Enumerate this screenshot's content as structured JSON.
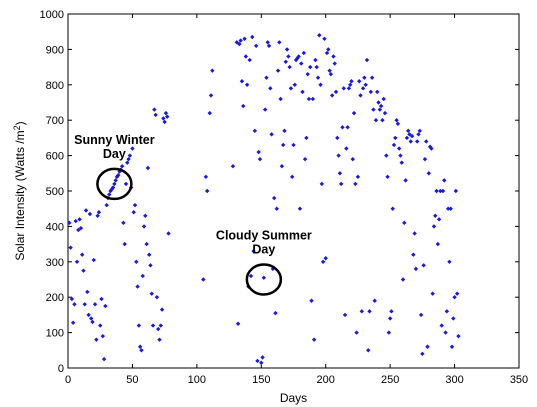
{
  "chart_data": {
    "type": "scatter",
    "xlabel": "Days",
    "ylabel_main": "Solar Intensity (Watts /m",
    "ylabel_sup": "2",
    "ylabel_close": ")",
    "xlim": [
      0,
      350
    ],
    "ylim": [
      0,
      1000
    ],
    "xticks": [
      0,
      50,
      100,
      150,
      200,
      250,
      300,
      350
    ],
    "yticks": [
      0,
      100,
      200,
      300,
      400,
      500,
      600,
      700,
      800,
      900,
      1000
    ],
    "grid": false,
    "marker_color": "#1a1adc",
    "annotation_color": "#000000",
    "annotations": [
      {
        "line1": "Sunny Winter",
        "line2": "Day",
        "x": 36,
        "y": 520
      },
      {
        "line1": "Cloudy Summer",
        "line2": "Day",
        "x": 152,
        "y": 250
      }
    ],
    "points": [
      [
        1,
        410
      ],
      [
        2,
        340
      ],
      [
        3,
        195
      ],
      [
        4,
        128
      ],
      [
        5,
        180
      ],
      [
        6,
        415
      ],
      [
        7,
        300
      ],
      [
        8,
        390
      ],
      [
        9,
        420
      ],
      [
        10,
        395
      ],
      [
        11,
        320
      ],
      [
        12,
        275
      ],
      [
        13,
        180
      ],
      [
        14,
        445
      ],
      [
        15,
        215
      ],
      [
        16,
        150
      ],
      [
        17,
        435
      ],
      [
        18,
        140
      ],
      [
        19,
        130
      ],
      [
        20,
        305
      ],
      [
        21,
        180
      ],
      [
        22,
        80
      ],
      [
        23,
        430
      ],
      [
        24,
        440
      ],
      [
        25,
        120
      ],
      [
        26,
        195
      ],
      [
        27,
        90
      ],
      [
        28,
        25
      ],
      [
        29,
        175
      ],
      [
        30,
        460
      ],
      [
        31,
        480
      ],
      [
        32,
        490
      ],
      [
        33,
        500
      ],
      [
        34,
        505
      ],
      [
        35,
        510
      ],
      [
        36,
        520
      ],
      [
        37,
        530
      ],
      [
        38,
        540
      ],
      [
        39,
        545
      ],
      [
        40,
        555
      ],
      [
        41,
        560
      ],
      [
        42,
        570
      ],
      [
        43,
        410
      ],
      [
        44,
        350
      ],
      [
        45,
        520
      ],
      [
        46,
        580
      ],
      [
        47,
        590
      ],
      [
        48,
        600
      ],
      [
        49,
        510
      ],
      [
        50,
        620
      ],
      [
        51,
        440
      ],
      [
        52,
        460
      ],
      [
        53,
        300
      ],
      [
        54,
        230
      ],
      [
        55,
        120
      ],
      [
        56,
        60
      ],
      [
        57,
        50
      ],
      [
        58,
        260
      ],
      [
        59,
        400
      ],
      [
        60,
        430
      ],
      [
        61,
        350
      ],
      [
        62,
        565
      ],
      [
        63,
        320
      ],
      [
        64,
        290
      ],
      [
        65,
        210
      ],
      [
        66,
        120
      ],
      [
        67,
        730
      ],
      [
        68,
        715
      ],
      [
        69,
        200
      ],
      [
        70,
        110
      ],
      [
        71,
        80
      ],
      [
        72,
        120
      ],
      [
        73,
        165
      ],
      [
        74,
        705
      ],
      [
        75,
        695
      ],
      [
        76,
        720
      ],
      [
        77,
        710
      ],
      [
        78,
        380
      ],
      [
        105,
        250
      ],
      [
        107,
        540
      ],
      [
        108,
        500
      ],
      [
        110,
        720
      ],
      [
        111,
        770
      ],
      [
        112,
        840
      ],
      [
        128,
        570
      ],
      [
        131,
        920
      ],
      [
        132,
        125
      ],
      [
        133,
        915
      ],
      [
        134,
        925
      ],
      [
        135,
        810
      ],
      [
        136,
        740
      ],
      [
        137,
        930
      ],
      [
        138,
        880
      ],
      [
        139,
        800
      ],
      [
        140,
        230
      ],
      [
        141,
        870
      ],
      [
        142,
        260
      ],
      [
        143,
        935
      ],
      [
        144,
        330
      ],
      [
        145,
        670
      ],
      [
        146,
        910
      ],
      [
        147,
        20
      ],
      [
        148,
        610
      ],
      [
        149,
        590
      ],
      [
        150,
        15
      ],
      [
        151,
        30
      ],
      [
        152,
        255
      ],
      [
        153,
        730
      ],
      [
        154,
        820
      ],
      [
        155,
        920
      ],
      [
        156,
        910
      ],
      [
        157,
        790
      ],
      [
        158,
        660
      ],
      [
        159,
        280
      ],
      [
        160,
        480
      ],
      [
        161,
        155
      ],
      [
        162,
        450
      ],
      [
        163,
        840
      ],
      [
        164,
        920
      ],
      [
        165,
        760
      ],
      [
        166,
        570
      ],
      [
        167,
        630
      ],
      [
        168,
        670
      ],
      [
        169,
        865
      ],
      [
        170,
        900
      ],
      [
        171,
        880
      ],
      [
        172,
        850
      ],
      [
        173,
        790
      ],
      [
        174,
        540
      ],
      [
        175,
        630
      ],
      [
        176,
        800
      ],
      [
        177,
        870
      ],
      [
        178,
        875
      ],
      [
        179,
        880
      ],
      [
        180,
        450
      ],
      [
        181,
        860
      ],
      [
        182,
        780
      ],
      [
        183,
        890
      ],
      [
        184,
        590
      ],
      [
        185,
        650
      ],
      [
        186,
        830
      ],
      [
        187,
        760
      ],
      [
        188,
        850
      ],
      [
        189,
        190
      ],
      [
        190,
        760
      ],
      [
        191,
        80
      ],
      [
        192,
        870
      ],
      [
        193,
        850
      ],
      [
        194,
        820
      ],
      [
        195,
        940
      ],
      [
        196,
        800
      ],
      [
        197,
        520
      ],
      [
        198,
        300
      ],
      [
        199,
        930
      ],
      [
        200,
        310
      ],
      [
        201,
        890
      ],
      [
        202,
        900
      ],
      [
        203,
        840
      ],
      [
        204,
        830
      ],
      [
        205,
        770
      ],
      [
        206,
        880
      ],
      [
        207,
        860
      ],
      [
        208,
        780
      ],
      [
        209,
        650
      ],
      [
        210,
        600
      ],
      [
        211,
        550
      ],
      [
        212,
        520
      ],
      [
        213,
        680
      ],
      [
        214,
        790
      ],
      [
        215,
        150
      ],
      [
        216,
        620
      ],
      [
        217,
        680
      ],
      [
        218,
        790
      ],
      [
        219,
        800
      ],
      [
        220,
        810
      ],
      [
        221,
        590
      ],
      [
        222,
        720
      ],
      [
        223,
        520
      ],
      [
        224,
        100
      ],
      [
        225,
        540
      ],
      [
        226,
        810
      ],
      [
        227,
        770
      ],
      [
        228,
        160
      ],
      [
        229,
        790
      ],
      [
        230,
        820
      ],
      [
        231,
        800
      ],
      [
        232,
        870
      ],
      [
        233,
        50
      ],
      [
        234,
        160
      ],
      [
        235,
        780
      ],
      [
        236,
        820
      ],
      [
        237,
        730
      ],
      [
        238,
        190
      ],
      [
        239,
        700
      ],
      [
        240,
        780
      ],
      [
        241,
        750
      ],
      [
        242,
        730
      ],
      [
        243,
        740
      ],
      [
        244,
        700
      ],
      [
        245,
        760
      ],
      [
        246,
        720
      ],
      [
        247,
        600
      ],
      [
        248,
        540
      ],
      [
        249,
        100
      ],
      [
        250,
        140
      ],
      [
        251,
        160
      ],
      [
        252,
        450
      ],
      [
        253,
        630
      ],
      [
        254,
        650
      ],
      [
        255,
        700
      ],
      [
        256,
        690
      ],
      [
        257,
        620
      ],
      [
        258,
        600
      ],
      [
        259,
        580
      ],
      [
        260,
        250
      ],
      [
        261,
        410
      ],
      [
        262,
        530
      ],
      [
        263,
        650
      ],
      [
        264,
        670
      ],
      [
        265,
        660
      ],
      [
        266,
        640
      ],
      [
        267,
        655
      ],
      [
        268,
        320
      ],
      [
        269,
        380
      ],
      [
        270,
        280
      ],
      [
        271,
        640
      ],
      [
        272,
        660
      ],
      [
        273,
        670
      ],
      [
        274,
        150
      ],
      [
        275,
        40
      ],
      [
        276,
        290
      ],
      [
        277,
        590
      ],
      [
        278,
        640
      ],
      [
        279,
        60
      ],
      [
        280,
        550
      ],
      [
        281,
        625
      ],
      [
        282,
        620
      ],
      [
        283,
        210
      ],
      [
        284,
        400
      ],
      [
        285,
        430
      ],
      [
        286,
        500
      ],
      [
        287,
        350
      ],
      [
        288,
        420
      ],
      [
        289,
        500
      ],
      [
        290,
        120
      ],
      [
        291,
        500
      ],
      [
        292,
        530
      ],
      [
        293,
        100
      ],
      [
        294,
        160
      ],
      [
        295,
        450
      ],
      [
        296,
        300
      ],
      [
        297,
        450
      ],
      [
        298,
        60
      ],
      [
        299,
        140
      ],
      [
        300,
        200
      ],
      [
        301,
        500
      ],
      [
        302,
        210
      ],
      [
        303,
        90
      ]
    ]
  }
}
